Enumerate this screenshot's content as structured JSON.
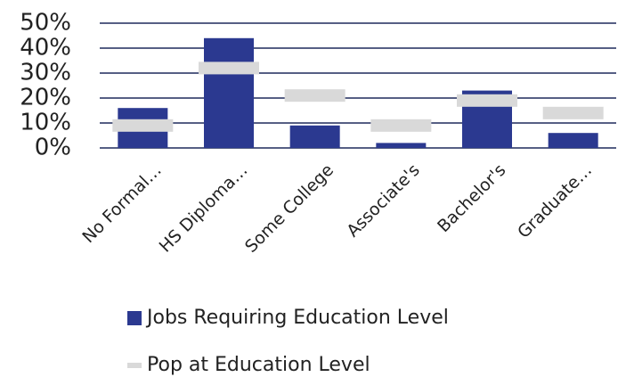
{
  "chart_data": {
    "type": "bar",
    "categories": [
      "No Formal…",
      "HS Diploma…",
      "Some College",
      "Associate's",
      "Bachelor's",
      "Graduate…"
    ],
    "series": [
      {
        "name": "Jobs Requiring Education Level",
        "color": "#2b3990",
        "style": "bar",
        "values": [
          16,
          44,
          9,
          2,
          23,
          6
        ]
      },
      {
        "name": "Pop at Education Level",
        "color": "#d9d9d9",
        "style": "dash",
        "values": [
          9,
          32,
          21,
          9,
          19,
          14
        ]
      }
    ],
    "ylim": [
      0,
      50
    ],
    "yticks": [
      {
        "value": 0,
        "label": "0%"
      },
      {
        "value": 10,
        "label": "10%"
      },
      {
        "value": 20,
        "label": "20%"
      },
      {
        "value": 30,
        "label": "30%"
      },
      {
        "value": 40,
        "label": "40%"
      },
      {
        "value": 50,
        "label": "50%"
      }
    ],
    "grid": true,
    "grid_color": "#1f2a5c",
    "legend": "bottom"
  }
}
